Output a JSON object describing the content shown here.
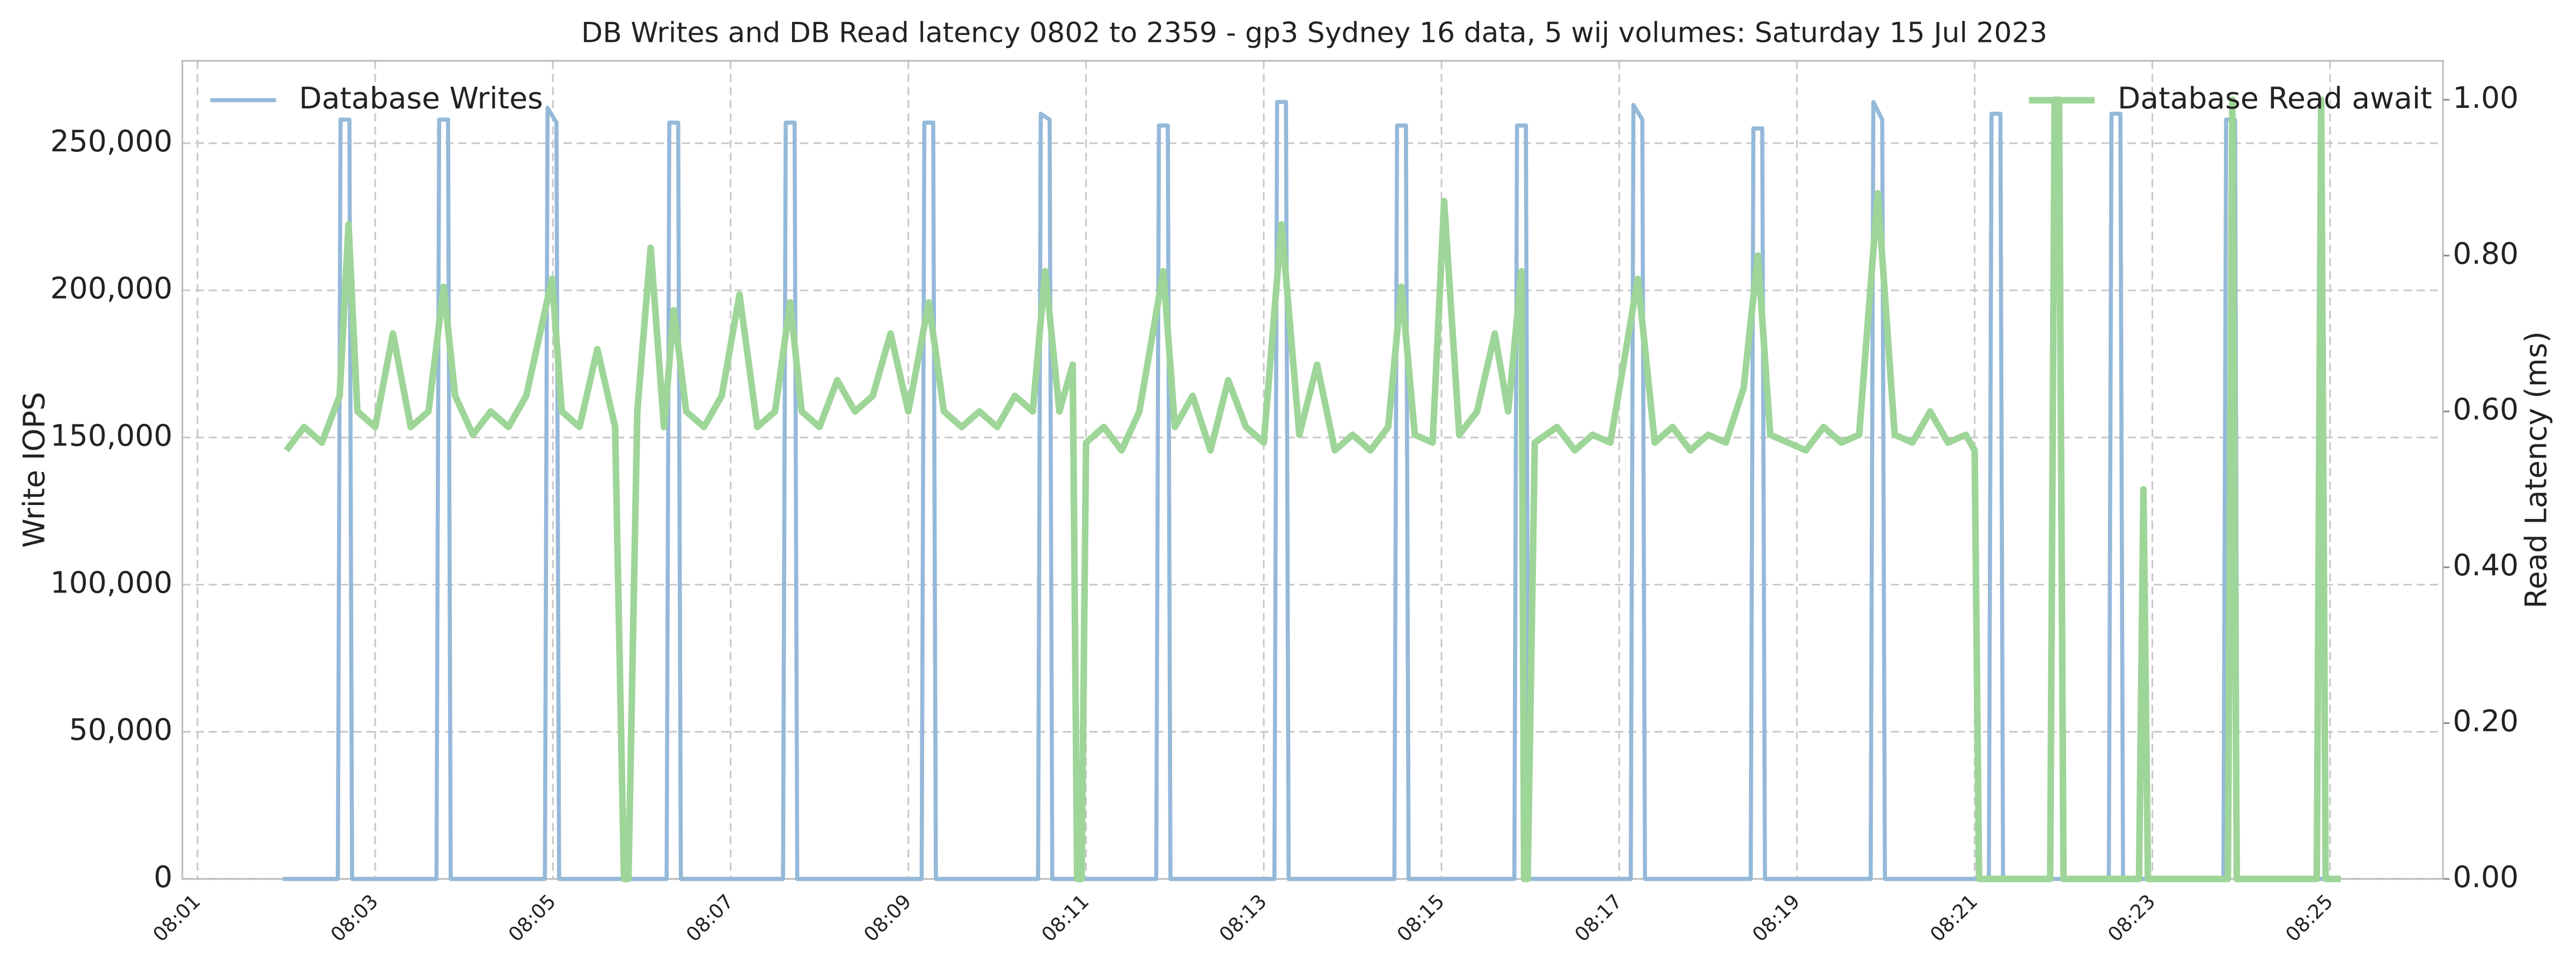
{
  "chart_data": {
    "type": "line",
    "title": "DB Writes and DB Read latency 0802 to 2359 - gp3 Sydney 16 data, 5 wij volumes: Saturday 15 Jul 2023",
    "ylabel": "Write IOPS",
    "y2label": "Read Latency (ms)",
    "xlim": [
      480.83,
      506.27
    ],
    "xticks": [
      {
        "value": 481,
        "label": "08:01"
      },
      {
        "value": 483,
        "label": "08:03"
      },
      {
        "value": 485,
        "label": "08:05"
      },
      {
        "value": 487,
        "label": "08:07"
      },
      {
        "value": 489,
        "label": "08:09"
      },
      {
        "value": 491,
        "label": "08:11"
      },
      {
        "value": 493,
        "label": "08:13"
      },
      {
        "value": 495,
        "label": "08:15"
      },
      {
        "value": 497,
        "label": "08:17"
      },
      {
        "value": 499,
        "label": "08:19"
      },
      {
        "value": 501,
        "label": "08:21"
      },
      {
        "value": 503,
        "label": "08:23"
      },
      {
        "value": 505,
        "label": "08:25"
      }
    ],
    "ylim": [
      0,
      278000
    ],
    "yticks": [
      0,
      {
        "value": 50000,
        "label": "50,000"
      },
      {
        "value": 100000,
        "label": "100,000"
      },
      {
        "value": 150000,
        "label": "150,000"
      },
      {
        "value": 200000,
        "label": "200,000"
      },
      {
        "value": 250000,
        "label": "250,000"
      }
    ],
    "y2lim": [
      0,
      1.05
    ],
    "y2ticks": [
      {
        "value": 0,
        "label": "0.00"
      },
      {
        "value": 0.2,
        "label": "0.20"
      },
      {
        "value": 0.4,
        "label": "0.40"
      },
      {
        "value": 0.6,
        "label": "0.60"
      },
      {
        "value": 0.8,
        "label": "0.80"
      },
      {
        "value": 1,
        "label": "1.00"
      }
    ],
    "grid": true,
    "series": [
      {
        "name": "Database Writes",
        "color": "#94b9d9",
        "width": 2.5,
        "legend": "upper left",
        "x": [
          481.96,
          482.58,
          482.61,
          482.71,
          482.74,
          483.69,
          483.72,
          483.82,
          483.85,
          484.91,
          484.94,
          485.04,
          485.07,
          486.28,
          486.31,
          486.41,
          486.44,
          487.59,
          487.62,
          487.72,
          487.75,
          489.15,
          489.18,
          489.28,
          489.31,
          490.46,
          490.49,
          490.59,
          490.62,
          491.79,
          491.82,
          491.92,
          491.95,
          493.12,
          493.15,
          493.25,
          493.28,
          494.47,
          494.5,
          494.6,
          494.63,
          495.82,
          495.85,
          495.95,
          495.98,
          497.13,
          497.16,
          497.26,
          497.29,
          498.48,
          498.51,
          498.61,
          498.64,
          499.83,
          499.86,
          499.96,
          499.99,
          501.16,
          501.19,
          501.29,
          501.32,
          502.51,
          502.54,
          502.64,
          502.67,
          503.8,
          503.83,
          503.93,
          503.96,
          505.12
        ],
        "values": [
          0,
          0,
          258000,
          258000,
          0,
          0,
          258000,
          258000,
          0,
          0,
          262000,
          257000,
          0,
          0,
          257000,
          257000,
          0,
          0,
          257000,
          257000,
          0,
          0,
          257000,
          257000,
          0,
          0,
          260000,
          258000,
          0,
          0,
          256000,
          256000,
          0,
          0,
          264000,
          264000,
          0,
          0,
          256000,
          256000,
          0,
          0,
          256000,
          256000,
          0,
          0,
          263000,
          258000,
          0,
          0,
          255000,
          255000,
          0,
          0,
          264000,
          258000,
          0,
          0,
          260000,
          260000,
          0,
          0,
          260000,
          260000,
          0,
          0,
          258000,
          258000,
          0,
          0
        ]
      },
      {
        "name": "Database Read await",
        "color": "#9ed598",
        "width": 4,
        "axis": "y2",
        "legend": "upper right",
        "x": [
          482.0,
          482.2,
          482.4,
          482.6,
          482.7,
          482.8,
          483.0,
          483.2,
          483.4,
          483.6,
          483.77,
          483.9,
          484.1,
          484.3,
          484.5,
          484.7,
          484.99,
          485.1,
          485.3,
          485.5,
          485.7,
          485.8,
          485.85,
          485.95,
          486.1,
          486.25,
          486.36,
          486.5,
          486.7,
          486.9,
          487.1,
          487.3,
          487.5,
          487.67,
          487.8,
          488.0,
          488.2,
          488.4,
          488.6,
          488.8,
          489.0,
          489.23,
          489.4,
          489.6,
          489.8,
          490.0,
          490.2,
          490.4,
          490.54,
          490.7,
          490.85,
          490.9,
          490.95,
          491.0,
          491.2,
          491.4,
          491.6,
          491.87,
          492.0,
          492.2,
          492.4,
          492.6,
          492.8,
          493.0,
          493.2,
          493.4,
          493.6,
          493.8,
          494.0,
          494.2,
          494.4,
          494.55,
          494.7,
          494.9,
          495.03,
          495.2,
          495.4,
          495.6,
          495.75,
          495.9,
          495.93,
          495.97,
          496.05,
          496.3,
          496.5,
          496.7,
          496.9,
          497.21,
          497.4,
          497.6,
          497.8,
          498.0,
          498.2,
          498.4,
          498.56,
          498.7,
          498.9,
          499.1,
          499.3,
          499.5,
          499.7,
          499.91,
          500.1,
          500.3,
          500.5,
          500.7,
          500.9,
          501.0,
          501.05,
          501.85,
          501.9,
          501.95,
          502.0,
          502.85,
          502.9,
          502.95,
          503.85,
          503.9,
          503.95,
          504.85,
          504.9,
          504.95,
          505.12
        ],
        "values": [
          0.55,
          0.58,
          0.56,
          0.62,
          0.84,
          0.6,
          0.58,
          0.7,
          0.58,
          0.6,
          0.76,
          0.62,
          0.57,
          0.6,
          0.58,
          0.62,
          0.77,
          0.6,
          0.58,
          0.68,
          0.58,
          0,
          0,
          0.6,
          0.81,
          0.58,
          0.73,
          0.6,
          0.58,
          0.62,
          0.75,
          0.58,
          0.6,
          0.74,
          0.6,
          0.58,
          0.64,
          0.6,
          0.62,
          0.7,
          0.6,
          0.74,
          0.6,
          0.58,
          0.6,
          0.58,
          0.62,
          0.6,
          0.78,
          0.6,
          0.66,
          0,
          0,
          0.56,
          0.58,
          0.55,
          0.6,
          0.78,
          0.58,
          0.62,
          0.55,
          0.64,
          0.58,
          0.56,
          0.84,
          0.57,
          0.66,
          0.55,
          0.57,
          0.55,
          0.58,
          0.76,
          0.57,
          0.56,
          0.87,
          0.57,
          0.6,
          0.7,
          0.6,
          0.78,
          0,
          0,
          0.56,
          0.58,
          0.55,
          0.57,
          0.56,
          0.77,
          0.56,
          0.58,
          0.55,
          0.57,
          0.56,
          0.63,
          0.8,
          0.57,
          0.56,
          0.55,
          0.58,
          0.56,
          0.57,
          0.88,
          0.57,
          0.56,
          0.6,
          0.56,
          0.57,
          0.55,
          0,
          0,
          1.0,
          1.0,
          0,
          0,
          0.5,
          0,
          0,
          1.0,
          0,
          0,
          1.0,
          0,
          0
        ]
      }
    ]
  }
}
